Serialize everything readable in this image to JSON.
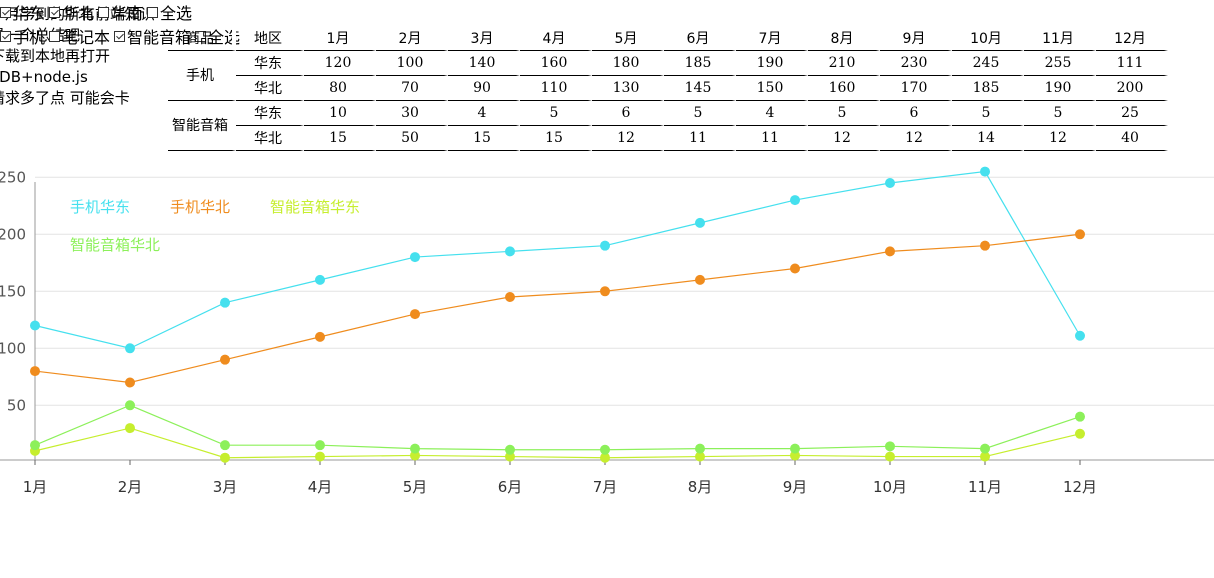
{
  "notes": [
    "个月学到的所有前端知识",
    "是一个总结吧",
    "下载到本地再打开",
    "oDB+node.js",
    "请求多了点 可能会卡"
  ],
  "region_filter": [
    {
      "label": "华东",
      "checked": true
    },
    {
      "label": "华北",
      "checked": true
    },
    {
      "label": "华南",
      "checked": false
    },
    {
      "label": "全选",
      "checked": false
    }
  ],
  "product_filter": [
    {
      "label": "手机",
      "checked": true
    },
    {
      "label": "笔记本",
      "checked": false
    },
    {
      "label": "智能音箱",
      "checked": true
    },
    {
      "label": "全选",
      "checked": false
    }
  ],
  "table": {
    "header": {
      "product": "商品",
      "region": "地区",
      "months": [
        "1月",
        "2月",
        "3月",
        "4月",
        "5月",
        "6月",
        "7月",
        "8月",
        "9月",
        "10月",
        "11月",
        "12月"
      ]
    },
    "groups": [
      {
        "product": "手机",
        "rows": [
          {
            "region": "华东",
            "values": [
              120,
              100,
              140,
              160,
              180,
              185,
              190,
              210,
              230,
              245,
              255,
              111
            ]
          },
          {
            "region": "华北",
            "values": [
              80,
              70,
              90,
              110,
              130,
              145,
              150,
              160,
              170,
              185,
              190,
              200
            ]
          }
        ]
      },
      {
        "product": "智能音箱",
        "rows": [
          {
            "region": "华东",
            "values": [
              10,
              30,
              4,
              5,
              6,
              5,
              4,
              5,
              6,
              5,
              5,
              25
            ]
          },
          {
            "region": "华北",
            "values": [
              15,
              50,
              15,
              15,
              12,
              11,
              11,
              12,
              12,
              14,
              12,
              40
            ]
          }
        ]
      }
    ]
  },
  "chart_data": {
    "type": "line",
    "categories": [
      "1月",
      "2月",
      "3月",
      "4月",
      "5月",
      "6月",
      "7月",
      "8月",
      "9月",
      "10月",
      "11月",
      "12月"
    ],
    "series": [
      {
        "name": "手机华东",
        "color": "#45e0ee",
        "values": [
          120,
          100,
          140,
          160,
          180,
          185,
          190,
          210,
          230,
          245,
          255,
          111
        ]
      },
      {
        "name": "手机华北",
        "color": "#ef8c1e",
        "values": [
          80,
          70,
          90,
          110,
          130,
          145,
          150,
          160,
          170,
          185,
          190,
          200
        ]
      },
      {
        "name": "智能音箱华东",
        "color": "#c6ee2e",
        "values": [
          10,
          30,
          4,
          5,
          6,
          5,
          4,
          5,
          6,
          5,
          5,
          25
        ]
      },
      {
        "name": "智能音箱华北",
        "color": "#8cf05a",
        "values": [
          15,
          50,
          15,
          15,
          12,
          11,
          11,
          12,
          12,
          14,
          12,
          40
        ]
      }
    ],
    "yticks": [
      50,
      100,
      150,
      200,
      250
    ],
    "ylim": [
      2,
      256
    ],
    "grid": true,
    "legend_position": "top-left"
  }
}
